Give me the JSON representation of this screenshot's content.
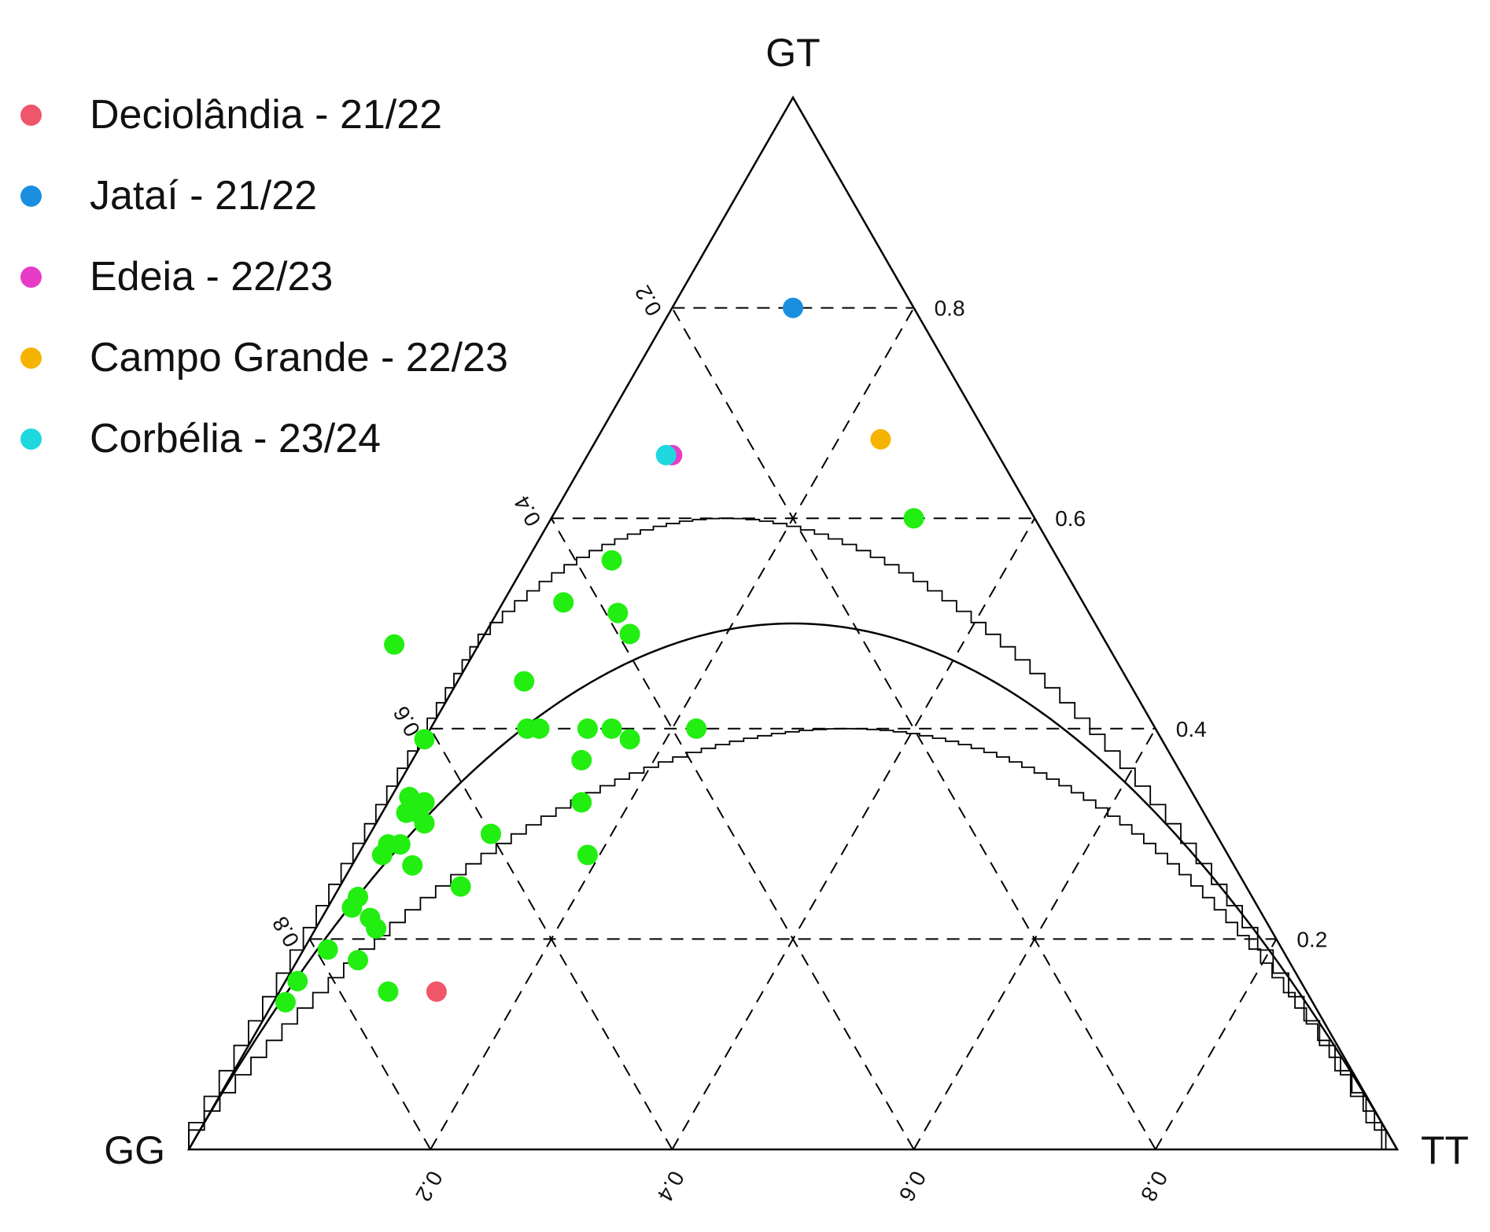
{
  "chart_data": {
    "type": "scatter",
    "subtype": "ternary (De Finetti diagram)",
    "vertices": {
      "top": "GT",
      "left": "GG",
      "right": "TT"
    },
    "axes": {
      "GT": {
        "ticks": [
          "0.2",
          "0.4",
          "0.6",
          "0.8"
        ],
        "tick_values": [
          0.2,
          0.4,
          0.6,
          0.8
        ]
      },
      "GG": {
        "ticks": [
          "0.2",
          "0.4",
          "0.6",
          "0.8"
        ],
        "tick_values": [
          0.2,
          0.4,
          0.6,
          0.8
        ]
      },
      "TT": {
        "ticks": [
          "0.2",
          "0.4",
          "0.6",
          "0.8"
        ],
        "tick_values": [
          0.2,
          0.4,
          0.6,
          0.8
        ]
      }
    },
    "grid": true,
    "hwe_parabola": true,
    "acceptance_region": true,
    "legend_position": "top-left",
    "series": [
      {
        "name": "Deciolândia - 21/22",
        "color": "#f0566a",
        "points": [
          {
            "GG": 0.72,
            "GT": 0.15,
            "TT": 0.13
          }
        ]
      },
      {
        "name": "Jataí - 21/22",
        "color": "#1a8fe0",
        "points": [
          {
            "GG": 0.1,
            "GT": 0.8,
            "TT": 0.1
          }
        ]
      },
      {
        "name": "Edeia - 22/23",
        "color": "#e63cc8",
        "points": [
          {
            "GG": 0.27,
            "GT": 0.66,
            "TT": 0.07
          }
        ]
      },
      {
        "name": "Campo Grande - 22/23",
        "color": "#f5b400",
        "points": [
          {
            "GG": 0.09,
            "GT": 0.675,
            "TT": 0.235
          }
        ]
      },
      {
        "name": "Corbélia - 23/24",
        "color": "#1fd8df",
        "points": [
          {
            "GG": 0.275,
            "GT": 0.66,
            "TT": 0.065
          }
        ]
      }
    ],
    "unlabeled_points": {
      "color": "#22ee11",
      "points": [
        {
          "GG": 0.1,
          "GT": 0.6,
          "TT": 0.3
        },
        {
          "GG": 0.37,
          "GT": 0.56,
          "TT": 0.07
        },
        {
          "GG": 0.43,
          "GT": 0.52,
          "TT": 0.05
        },
        {
          "GG": 0.39,
          "GT": 0.51,
          "TT": 0.1
        },
        {
          "GG": 0.39,
          "GT": 0.49,
          "TT": 0.12
        },
        {
          "GG": 0.59,
          "GT": 0.48,
          "TT": -0.07
        },
        {
          "GG": 0.5,
          "GT": 0.445,
          "TT": 0.055
        },
        {
          "GG": 0.51,
          "GT": 0.4,
          "TT": 0.09
        },
        {
          "GG": 0.52,
          "GT": 0.4,
          "TT": 0.08
        },
        {
          "GG": 0.47,
          "GT": 0.4,
          "TT": 0.13
        },
        {
          "GG": 0.45,
          "GT": 0.4,
          "TT": 0.15
        },
        {
          "GG": 0.44,
          "GT": 0.39,
          "TT": 0.17
        },
        {
          "GG": 0.38,
          "GT": 0.4,
          "TT": 0.22
        },
        {
          "GG": 0.61,
          "GT": 0.39,
          "TT": 0.0
        },
        {
          "GG": 0.49,
          "GT": 0.37,
          "TT": 0.14
        },
        {
          "GG": 0.51,
          "GT": 0.33,
          "TT": 0.16
        },
        {
          "GG": 0.53,
          "GT": 0.28,
          "TT": 0.19
        },
        {
          "GG": 0.65,
          "GT": 0.335,
          "TT": 0.015
        },
        {
          "GG": 0.64,
          "GT": 0.33,
          "TT": 0.03
        },
        {
          "GG": 0.65,
          "GT": 0.32,
          "TT": 0.03
        },
        {
          "GG": 0.66,
          "GT": 0.32,
          "TT": 0.02
        },
        {
          "GG": 0.65,
          "GT": 0.31,
          "TT": 0.04
        },
        {
          "GG": 0.6,
          "GT": 0.3,
          "TT": 0.1
        },
        {
          "GG": 0.69,
          "GT": 0.29,
          "TT": 0.02
        },
        {
          "GG": 0.68,
          "GT": 0.29,
          "TT": 0.03
        },
        {
          "GG": 0.7,
          "GT": 0.28,
          "TT": 0.02
        },
        {
          "GG": 0.68,
          "GT": 0.27,
          "TT": 0.05
        },
        {
          "GG": 0.65,
          "GT": 0.25,
          "TT": 0.1
        },
        {
          "GG": 0.74,
          "GT": 0.24,
          "TT": 0.02
        },
        {
          "GG": 0.75,
          "GT": 0.23,
          "TT": 0.02
        },
        {
          "GG": 0.74,
          "GT": 0.22,
          "TT": 0.04
        },
        {
          "GG": 0.74,
          "GT": 0.21,
          "TT": 0.05
        },
        {
          "GG": 0.79,
          "GT": 0.19,
          "TT": 0.02
        },
        {
          "GG": 0.77,
          "GT": 0.18,
          "TT": 0.05
        },
        {
          "GG": 0.83,
          "GT": 0.16,
          "TT": 0.01
        },
        {
          "GG": 0.76,
          "GT": 0.15,
          "TT": 0.09
        },
        {
          "GG": 0.85,
          "GT": 0.14,
          "TT": 0.01
        }
      ]
    }
  }
}
